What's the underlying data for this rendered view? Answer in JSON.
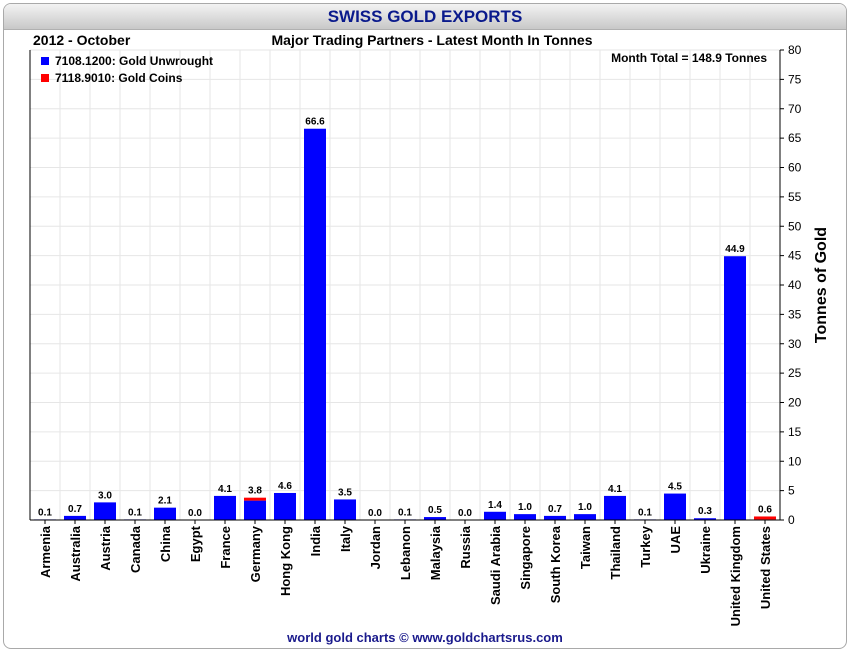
{
  "header": {
    "title": "SWISS GOLD EXPORTS",
    "period": "2012 - October",
    "subtitle": "Major Trading Partners - Latest Month In Tonnes"
  },
  "footer": {
    "credit": "world gold charts © www.goldchartsrus.com"
  },
  "colors": {
    "unwrought": "#0000ff",
    "coins": "#ff0000",
    "title": "#0a1a8c",
    "grid": "#e6e6e6"
  },
  "chart_data": {
    "type": "bar",
    "stacked": true,
    "ylabel": "Tonnes of Gold",
    "ylim": [
      0,
      80
    ],
    "ytick_step": 5,
    "y_axis_side": "right",
    "grid": true,
    "legend_position": "top-left",
    "annotation": "Month Total = 148.9 Tonnes",
    "categories": [
      "Armenia",
      "Australia",
      "Austria",
      "Canada",
      "China",
      "Egypt",
      "France",
      "Germany",
      "Hong Kong",
      "India",
      "Italy",
      "Jordan",
      "Lebanon",
      "Malaysia",
      "Russia",
      "Saudi Arabia",
      "Singapore",
      "South Korea",
      "Taiwan",
      "Thailand",
      "Turkey",
      "UAE",
      "Ukraine",
      "United Kingdom",
      "United States"
    ],
    "totals": [
      "0.1",
      "0.7",
      "3.0",
      "0.1",
      "2.1",
      "0.0",
      "4.1",
      "3.8",
      "4.6",
      "66.6",
      "3.5",
      "0.0",
      "0.1",
      "0.5",
      "0.0",
      "1.4",
      "1.0",
      "0.7",
      "1.0",
      "4.1",
      "0.1",
      "4.5",
      "0.3",
      "44.9",
      "0.6"
    ],
    "series": [
      {
        "name": "7108.1200: Gold Unwrought",
        "color": "#0000ff",
        "values": [
          0.1,
          0.7,
          3.0,
          0.1,
          2.1,
          0.0,
          4.1,
          3.3,
          4.6,
          66.6,
          3.5,
          0.0,
          0.1,
          0.5,
          0.0,
          1.4,
          1.0,
          0.7,
          1.0,
          4.1,
          0.1,
          4.5,
          0.3,
          44.9,
          0.1
        ]
      },
      {
        "name": "7118.9010: Gold Coins",
        "color": "#ff0000",
        "values": [
          0,
          0,
          0,
          0,
          0,
          0,
          0,
          0.5,
          0,
          0,
          0,
          0,
          0,
          0,
          0,
          0,
          0,
          0,
          0,
          0,
          0,
          0,
          0,
          0,
          0.5
        ]
      }
    ]
  }
}
